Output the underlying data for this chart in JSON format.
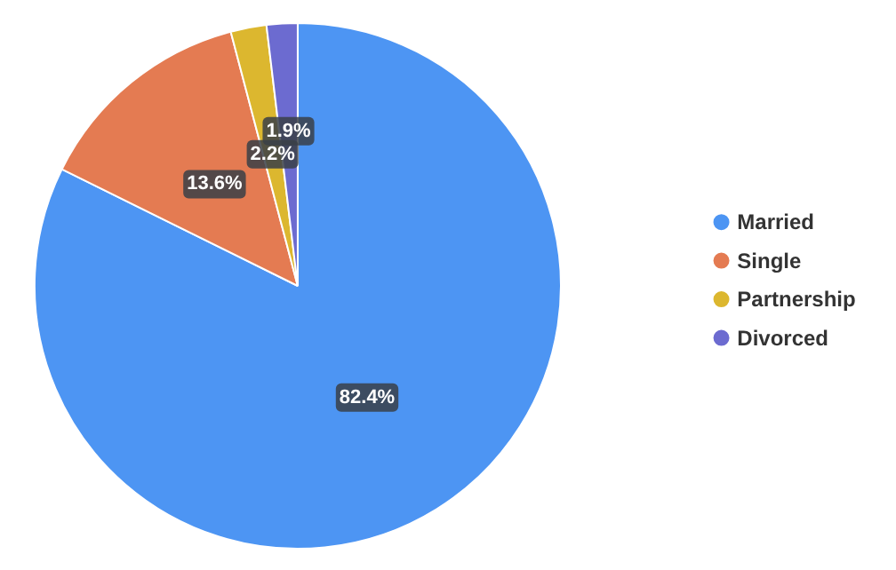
{
  "chart_data": {
    "type": "pie",
    "categories": [
      "Married",
      "Single",
      "Partnership",
      "Divorced"
    ],
    "values": [
      82.4,
      13.6,
      2.2,
      1.9
    ],
    "colors": [
      "#4d95f3",
      "#e47b52",
      "#dcb72f",
      "#6c6bd0"
    ],
    "value_labels": [
      "82.4%",
      "13.6%",
      "2.2%",
      "1.9%"
    ],
    "legend": "right"
  }
}
